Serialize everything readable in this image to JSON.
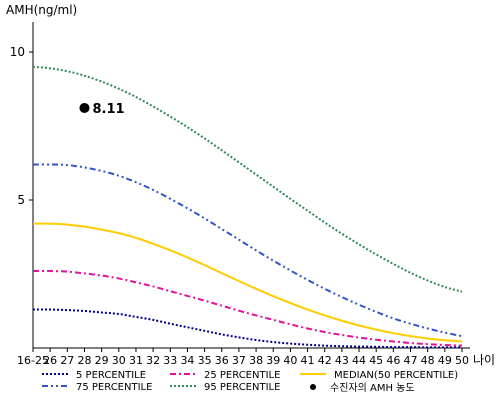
{
  "chart_data": {
    "type": "line",
    "title": "",
    "ylabel": "AMH(ng/ml)",
    "xlabel": "나이",
    "ylim": [
      0,
      10.8
    ],
    "yticks": [
      5,
      10
    ],
    "grid": false,
    "legend_position": "bottom",
    "x": [
      "16-25",
      "26",
      "27",
      "28",
      "29",
      "30",
      "31",
      "32",
      "33",
      "34",
      "35",
      "36",
      "37",
      "38",
      "39",
      "40",
      "41",
      "42",
      "43",
      "44",
      "45",
      "46",
      "47",
      "48",
      "49",
      "50"
    ],
    "series": [
      {
        "name": "5 PERCENTILE",
        "color": "#000080",
        "style": "dotted",
        "values": [
          1.3,
          1.3,
          1.28,
          1.25,
          1.2,
          1.15,
          1.05,
          0.95,
          0.82,
          0.7,
          0.58,
          0.46,
          0.36,
          0.27,
          0.2,
          0.15,
          0.11,
          0.08,
          0.06,
          0.05,
          0.04,
          0.03,
          0.03,
          0.02,
          0.02,
          0.02
        ]
      },
      {
        "name": "25 PERCENTILE",
        "color": "#e0119a",
        "style": "dashdot",
        "values": [
          2.6,
          2.6,
          2.58,
          2.52,
          2.45,
          2.35,
          2.22,
          2.08,
          1.92,
          1.76,
          1.6,
          1.43,
          1.26,
          1.1,
          0.95,
          0.8,
          0.66,
          0.54,
          0.44,
          0.35,
          0.28,
          0.22,
          0.17,
          0.13,
          0.1,
          0.08
        ]
      },
      {
        "name": "MEDIAN(50 PERCENTILE)",
        "color": "#ffcc00",
        "style": "solid",
        "values": [
          4.2,
          4.2,
          4.17,
          4.1,
          4.0,
          3.88,
          3.72,
          3.52,
          3.3,
          3.06,
          2.8,
          2.53,
          2.26,
          2.0,
          1.75,
          1.52,
          1.3,
          1.1,
          0.92,
          0.76,
          0.62,
          0.5,
          0.4,
          0.32,
          0.26,
          0.22
        ]
      },
      {
        "name": "75 PERCENTILE",
        "color": "#3355cc",
        "style": "dashdotdot",
        "values": [
          6.2,
          6.2,
          6.18,
          6.1,
          5.98,
          5.82,
          5.6,
          5.34,
          5.04,
          4.72,
          4.38,
          4.02,
          3.66,
          3.3,
          2.95,
          2.62,
          2.3,
          2.0,
          1.72,
          1.46,
          1.22,
          1.0,
          0.82,
          0.66,
          0.52,
          0.4
        ]
      },
      {
        "name": "95 PERCENTILE",
        "color": "#2e8b57",
        "style": "dotted",
        "values": [
          9.5,
          9.45,
          9.35,
          9.2,
          9.0,
          8.76,
          8.48,
          8.16,
          7.82,
          7.46,
          7.08,
          6.68,
          6.27,
          5.86,
          5.45,
          5.04,
          4.64,
          4.24,
          3.86,
          3.5,
          3.16,
          2.84,
          2.54,
          2.28,
          2.06,
          1.9
        ]
      }
    ],
    "marker": {
      "label": "수진자의 AMH 농도",
      "x": "28",
      "y": 8.11,
      "value_text": "8.11",
      "color": "#000000"
    }
  }
}
